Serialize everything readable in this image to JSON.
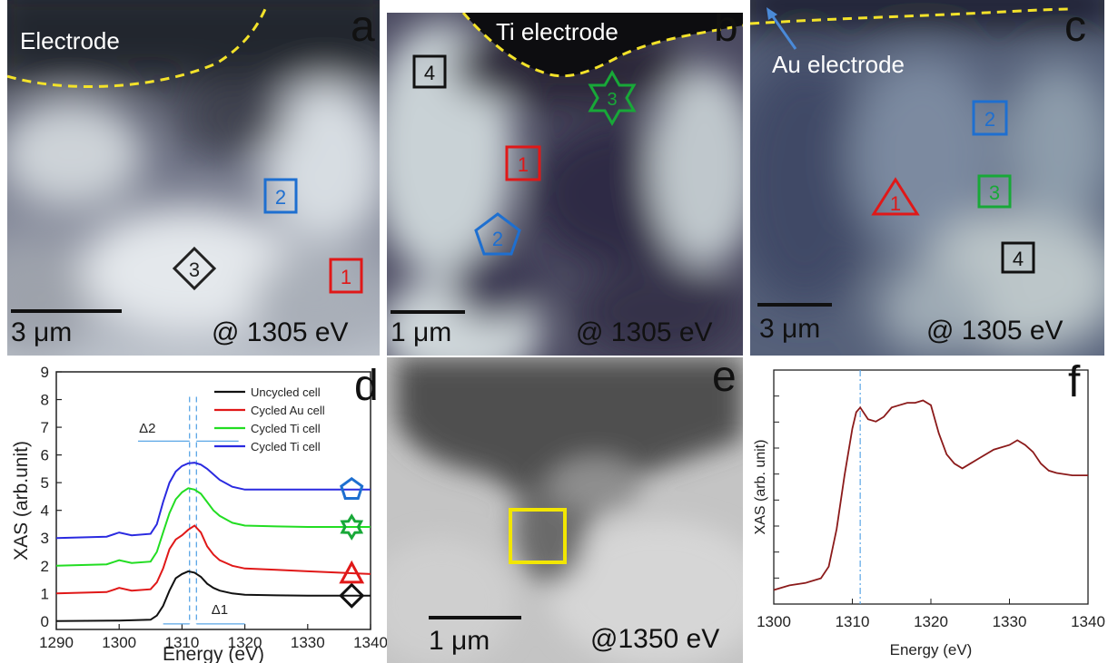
{
  "panels": {
    "a": {
      "letter": "a",
      "electrode_label": "Electrode",
      "scale_label": "3 μm",
      "energy_label": "@ 1305 eV",
      "markers": [
        {
          "shape": "diamond",
          "label": "3",
          "color": "#222222"
        },
        {
          "shape": "square",
          "label": "2",
          "color": "#1e6fd0"
        },
        {
          "shape": "square",
          "label": "1",
          "color": "#e01818"
        }
      ]
    },
    "b": {
      "letter": "b",
      "electrode_label": "Ti electrode",
      "scale_label": "1 μm",
      "energy_label": "@ 1305 eV",
      "markers": [
        {
          "shape": "square",
          "label": "4",
          "color": "#111111"
        },
        {
          "shape": "star",
          "label": "3",
          "color": "#18a838"
        },
        {
          "shape": "square",
          "label": "1",
          "color": "#e01818"
        },
        {
          "shape": "pentagon",
          "label": "2",
          "color": "#1e6fd0"
        }
      ]
    },
    "c": {
      "letter": "c",
      "electrode_label": "Au electrode",
      "scale_label": "3 μm",
      "energy_label": "@ 1305 eV",
      "markers": [
        {
          "shape": "square",
          "label": "2",
          "color": "#1e6fd0"
        },
        {
          "shape": "triangle",
          "label": "1",
          "color": "#e01818"
        },
        {
          "shape": "square",
          "label": "3",
          "color": "#18a838"
        },
        {
          "shape": "square",
          "label": "4",
          "color": "#111111"
        }
      ]
    },
    "d": {
      "letter": "d"
    },
    "e": {
      "letter": "e",
      "scale_label": "1 μm",
      "energy_label": "@1350 eV",
      "roi_color": "#f2e600"
    },
    "f": {
      "letter": "f"
    }
  },
  "chart_data": [
    {
      "type": "line",
      "panel": "d",
      "xlabel": "Energy (eV)",
      "ylabel": "XAS (arb.unit)",
      "xlim": [
        1290,
        1340
      ],
      "ylim": [
        -0.3,
        9
      ],
      "xticks": [
        1290,
        1300,
        1310,
        1320,
        1330,
        1340
      ],
      "yticks": [
        0,
        1,
        2,
        3,
        4,
        5,
        6,
        7,
        8,
        9
      ],
      "legend_position": "top-right",
      "annotations": [
        {
          "text": "Δ2"
        },
        {
          "text": "Δ1"
        }
      ],
      "reference_lines_x": [
        1311.2,
        1312.3
      ],
      "series": [
        {
          "name": "Uncycled cell",
          "color": "#111111",
          "marker": "diamond",
          "x": [
            1290,
            1300,
            1305,
            1306,
            1307,
            1308,
            1309,
            1310,
            1311,
            1312,
            1313,
            1314,
            1315,
            1316,
            1318,
            1320,
            1325,
            1330,
            1335,
            1340
          ],
          "y": [
            0.0,
            0.02,
            0.05,
            0.2,
            0.55,
            1.1,
            1.55,
            1.7,
            1.8,
            1.75,
            1.6,
            1.35,
            1.2,
            1.1,
            1.0,
            0.95,
            0.93,
            0.92,
            0.92,
            0.92
          ]
        },
        {
          "name": "Cycled Au cell",
          "color": "#e01818",
          "marker": "triangle",
          "x": [
            1290,
            1298,
            1300,
            1302,
            1305,
            1306,
            1307,
            1308,
            1309,
            1310,
            1311,
            1312,
            1313,
            1314,
            1315,
            1316,
            1318,
            1320,
            1325,
            1330,
            1335,
            1340
          ],
          "y": [
            1.0,
            1.05,
            1.2,
            1.1,
            1.15,
            1.4,
            1.9,
            2.6,
            2.95,
            3.1,
            3.3,
            3.45,
            3.2,
            2.7,
            2.4,
            2.2,
            2.0,
            1.9,
            1.85,
            1.8,
            1.75,
            1.7
          ]
        },
        {
          "name": "Cycled Ti cell",
          "color": "#22dd22",
          "marker": "star",
          "x": [
            1290,
            1298,
            1300,
            1302,
            1305,
            1306,
            1307,
            1308,
            1309,
            1310,
            1311,
            1312,
            1313,
            1314,
            1315,
            1316,
            1318,
            1320,
            1325,
            1330,
            1335,
            1340
          ],
          "y": [
            2.0,
            2.05,
            2.2,
            2.1,
            2.15,
            2.5,
            3.2,
            3.9,
            4.4,
            4.65,
            4.8,
            4.75,
            4.6,
            4.3,
            4.0,
            3.8,
            3.55,
            3.45,
            3.42,
            3.4,
            3.4,
            3.4
          ]
        },
        {
          "name": "Cycled Ti cell",
          "color": "#2a2ae0",
          "marker": "pentagon",
          "x": [
            1290,
            1298,
            1300,
            1302,
            1305,
            1306,
            1307,
            1308,
            1309,
            1310,
            1311,
            1312,
            1313,
            1314,
            1315,
            1316,
            1318,
            1320,
            1325,
            1330,
            1335,
            1340
          ],
          "y": [
            3.0,
            3.05,
            3.2,
            3.1,
            3.15,
            3.5,
            4.3,
            5.0,
            5.4,
            5.6,
            5.7,
            5.72,
            5.65,
            5.5,
            5.3,
            5.1,
            4.85,
            4.75,
            4.75,
            4.75,
            4.75,
            4.75
          ]
        }
      ]
    },
    {
      "type": "line",
      "panel": "f",
      "xlabel": "Energy (eV)",
      "ylabel": "XAS (arb. unit)",
      "xlim": [
        1300,
        1340
      ],
      "ylim": [
        0,
        1
      ],
      "xticks": [
        1300,
        1310,
        1320,
        1330,
        1340
      ],
      "reference_lines_x": [
        1311
      ],
      "series": [
        {
          "color": "#8b1a1a",
          "x": [
            1300,
            1302,
            1304,
            1306,
            1307,
            1308,
            1309,
            1310,
            1310.5,
            1311,
            1312,
            1313,
            1314,
            1315,
            1316,
            1317,
            1318,
            1319,
            1320,
            1321,
            1322,
            1323,
            1324,
            1325,
            1326,
            1328,
            1330,
            1331,
            1332,
            1333,
            1334,
            1335,
            1336,
            1338,
            1340
          ],
          "y": [
            0.06,
            0.08,
            0.09,
            0.11,
            0.16,
            0.32,
            0.55,
            0.75,
            0.82,
            0.84,
            0.79,
            0.78,
            0.8,
            0.84,
            0.85,
            0.86,
            0.86,
            0.87,
            0.85,
            0.73,
            0.64,
            0.6,
            0.58,
            0.6,
            0.62,
            0.66,
            0.68,
            0.7,
            0.68,
            0.65,
            0.6,
            0.57,
            0.56,
            0.55,
            0.55
          ]
        }
      ]
    }
  ]
}
